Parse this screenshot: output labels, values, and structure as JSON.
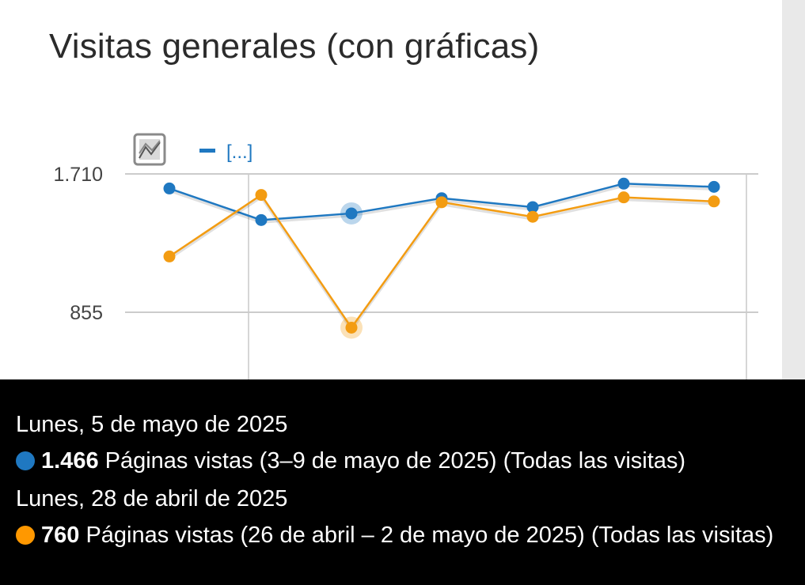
{
  "widget": {
    "title": "Visitas generales (con gráficas)"
  },
  "chart_data": {
    "type": "line",
    "ylim": [
      680,
      1710
    ],
    "y_ticks": [
      {
        "value": 1710,
        "label": "1.710"
      },
      {
        "value": 855,
        "label": "855"
      }
    ],
    "legend_text": "[...]",
    "grid": true,
    "series": [
      {
        "color": "#1f78c1",
        "values": [
          1620,
          1425,
          1466,
          1560,
          1505,
          1650,
          1630
        ]
      },
      {
        "color": "#f39c12",
        "values": [
          1200,
          1580,
          760,
          1535,
          1445,
          1565,
          1540
        ]
      }
    ],
    "highlight_index": 2,
    "icon": "chart-toggle-icon"
  },
  "tooltip": {
    "date_current": "Lunes, 5 de mayo de 2025",
    "current_value": "1.466",
    "current_text": " Páginas vistas (3–9 de mayo de 2025) (Todas las visitas)",
    "date_previous": "Lunes, 28 de abril de 2025",
    "previous_value": "760",
    "previous_text": " Páginas vistas (26 de abril – 2 de mayo de 2025) (Todas las visitas)",
    "current_color": "#1f78c1",
    "previous_color": "#ff9800"
  }
}
